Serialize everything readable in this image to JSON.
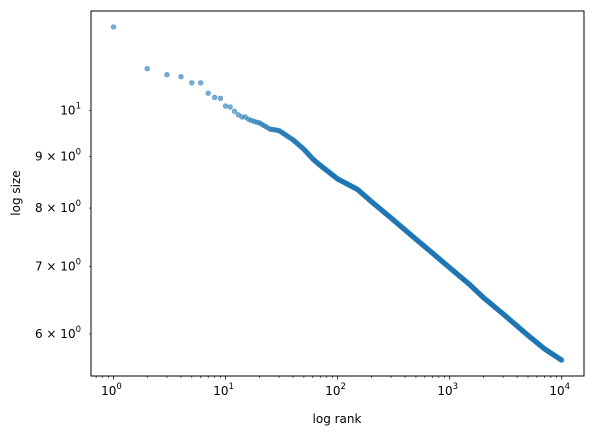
{
  "chart_data": {
    "type": "scatter",
    "title": "",
    "xlabel": "log rank",
    "ylabel": "log size",
    "xscale": "log",
    "yscale": "log",
    "xlim": [
      0.63,
      15800
    ],
    "ylim": [
      5.45,
      12.55
    ],
    "grid": false,
    "marker_color": "#1f77b4",
    "marker_alpha": 0.6,
    "x_ticks": [
      {
        "value": 1,
        "base": "10",
        "exp": "0"
      },
      {
        "value": 10,
        "base": "10",
        "exp": "1"
      },
      {
        "value": 100,
        "base": "10",
        "exp": "2"
      },
      {
        "value": 1000,
        "base": "10",
        "exp": "3"
      },
      {
        "value": 10000,
        "base": "10",
        "exp": "4"
      }
    ],
    "y_ticks": [
      {
        "value": 6,
        "label": "6 × 10",
        "exp": "0"
      },
      {
        "value": 7,
        "label": "7 × 10",
        "exp": "0"
      },
      {
        "value": 8,
        "label": "8 × 10",
        "exp": "0"
      },
      {
        "value": 9,
        "label": "9 × 10",
        "exp": "0"
      },
      {
        "value": 10,
        "label": "10",
        "exp": "1"
      }
    ],
    "points": [
      {
        "x": 1,
        "y": 12.1
      },
      {
        "x": 2,
        "y": 11.0
      },
      {
        "x": 3,
        "y": 10.85
      },
      {
        "x": 4,
        "y": 10.8
      },
      {
        "x": 5,
        "y": 10.65
      },
      {
        "x": 6,
        "y": 10.65
      },
      {
        "x": 7,
        "y": 10.4
      },
      {
        "x": 8,
        "y": 10.3
      },
      {
        "x": 9,
        "y": 10.28
      },
      {
        "x": 10,
        "y": 10.1
      },
      {
        "x": 11,
        "y": 10.08
      },
      {
        "x": 12,
        "y": 9.98
      },
      {
        "x": 13,
        "y": 9.9
      },
      {
        "x": 14,
        "y": 9.85
      },
      {
        "x": 15,
        "y": 9.85
      },
      {
        "x": 16,
        "y": 9.8
      },
      {
        "x": 18,
        "y": 9.75
      },
      {
        "x": 20,
        "y": 9.72
      },
      {
        "x": 25,
        "y": 9.58
      },
      {
        "x": 30,
        "y": 9.55
      },
      {
        "x": 40,
        "y": 9.35
      },
      {
        "x": 50,
        "y": 9.15
      },
      {
        "x": 60,
        "y": 8.95
      },
      {
        "x": 70,
        "y": 8.82
      },
      {
        "x": 100,
        "y": 8.55
      },
      {
        "x": 150,
        "y": 8.35
      },
      {
        "x": 200,
        "y": 8.12
      },
      {
        "x": 300,
        "y": 7.82
      },
      {
        "x": 500,
        "y": 7.45
      },
      {
        "x": 700,
        "y": 7.22
      },
      {
        "x": 1000,
        "y": 6.98
      },
      {
        "x": 1500,
        "y": 6.72
      },
      {
        "x": 2000,
        "y": 6.52
      },
      {
        "x": 3000,
        "y": 6.28
      },
      {
        "x": 5000,
        "y": 5.98
      },
      {
        "x": 7000,
        "y": 5.8
      },
      {
        "x": 10000,
        "y": 5.65
      }
    ]
  }
}
